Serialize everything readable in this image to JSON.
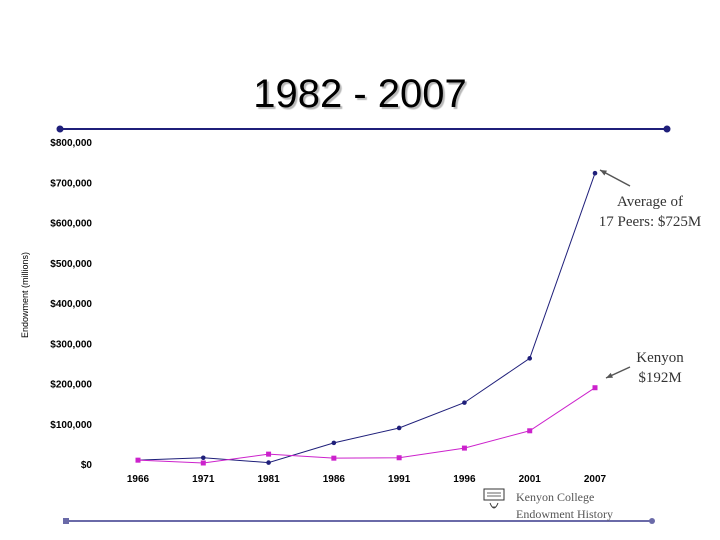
{
  "slide": {
    "title": "1982 - 2007",
    "accent_color": "#1f1f7a",
    "footer_line_color": "#6a6aa8"
  },
  "chart_data": {
    "type": "line",
    "x": [
      "1966",
      "1971",
      "1981",
      "1986",
      "1991",
      "1996",
      "2001",
      "2007"
    ],
    "ylabel": "Endowment (millions)",
    "ylim": [
      0,
      800000
    ],
    "y_ticks": [
      "$0",
      "$100,000",
      "$200,000",
      "$300,000",
      "$400,000",
      "$500,000",
      "$600,000",
      "$700,000",
      "$800,000"
    ],
    "y_tick_values": [
      0,
      100000,
      200000,
      300000,
      400000,
      500000,
      600000,
      700000,
      800000
    ],
    "grid": false,
    "series": [
      {
        "values": [
          12000,
          18000,
          6000,
          55000,
          92000,
          155000,
          265000,
          725000
        ],
        "color": "#1f1f7a"
      },
      {
        "values": [
          12000,
          5000,
          27000,
          17000,
          18000,
          42000,
          85000,
          192000
        ],
        "color": "#cc22cc"
      }
    ],
    "annotations": [
      {
        "lines": [
          "Average of",
          "17 Peers: $725M"
        ],
        "series_index": 0,
        "point_index": 7
      },
      {
        "lines": [
          "Kenyon",
          "$192M"
        ],
        "series_index": 1,
        "point_index": 7
      }
    ]
  },
  "footer": {
    "lines": [
      "Kenyon College",
      "Endowment History"
    ],
    "logo_icon": "college-seal-icon"
  }
}
